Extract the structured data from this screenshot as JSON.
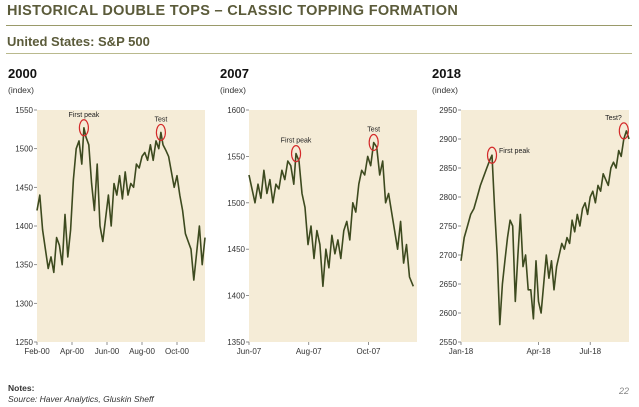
{
  "header": {
    "title": "HISTORICAL DOUBLE TOPS – CLASSIC TOPPING FORMATION",
    "subtitle": "United States: S&P 500"
  },
  "footer": {
    "notes_label": "Notes:",
    "source": "Source: Haver Analytics, Gluskin Sheff",
    "page_number": "22"
  },
  "colors": {
    "plot_background": "#f5ecd7",
    "line": "#3d4a1f",
    "circle": "#d42a2a"
  },
  "chart_data": [
    {
      "type": "line",
      "title": "2000",
      "ylabel": "(index)",
      "ylim": [
        1250,
        1550
      ],
      "yticks": [
        1250,
        1300,
        1350,
        1400,
        1450,
        1500,
        1550
      ],
      "xticks": [
        "Feb-00",
        "Apr-00",
        "Jun-00",
        "Aug-00",
        "Oct-00"
      ],
      "xrange": [
        0,
        24
      ],
      "xtick_positions": [
        0,
        5,
        10,
        15,
        20
      ],
      "grid": false,
      "annotations": [
        {
          "label": "First peak",
          "x": 6.7,
          "y": 1527
        },
        {
          "label": "Test",
          "x": 17.7,
          "y": 1521
        }
      ],
      "series": [
        {
          "x": [
            0,
            0.4,
            0.8,
            1.2,
            1.6,
            2,
            2.4,
            2.8,
            3.2,
            3.6,
            4,
            4.4,
            4.8,
            5.2,
            5.6,
            6,
            6.4,
            6.7,
            7,
            7.4,
            7.8,
            8.2,
            8.6,
            9,
            9.4,
            9.8,
            10.2,
            10.6,
            11,
            11.4,
            11.8,
            12.2,
            12.6,
            13,
            13.4,
            13.8,
            14.2,
            14.6,
            15,
            15.4,
            15.8,
            16.2,
            16.6,
            17,
            17.4,
            17.7,
            18,
            18.4,
            18.8,
            19.2,
            19.6,
            20,
            20.4,
            20.8,
            21.2,
            21.6,
            22,
            22.4,
            22.8,
            23.2,
            23.6,
            24
          ],
          "values": [
            1420,
            1440,
            1395,
            1370,
            1345,
            1360,
            1340,
            1385,
            1375,
            1350,
            1415,
            1360,
            1395,
            1460,
            1500,
            1510,
            1480,
            1527,
            1515,
            1505,
            1455,
            1420,
            1480,
            1400,
            1380,
            1410,
            1440,
            1400,
            1455,
            1440,
            1465,
            1435,
            1470,
            1440,
            1455,
            1450,
            1480,
            1475,
            1490,
            1495,
            1485,
            1505,
            1485,
            1510,
            1500,
            1521,
            1505,
            1498,
            1490,
            1470,
            1450,
            1465,
            1440,
            1420,
            1390,
            1380,
            1370,
            1330,
            1365,
            1400,
            1350,
            1385
          ]
        }
      ]
    },
    {
      "type": "line",
      "title": "2007",
      "ylabel": "(index)",
      "ylim": [
        1350,
        1600
      ],
      "yticks": [
        1350,
        1400,
        1450,
        1500,
        1550,
        1600
      ],
      "xticks": [
        "Jun-07",
        "Aug-07",
        "Oct-07"
      ],
      "xrange": [
        0,
        22.5
      ],
      "xtick_positions": [
        0,
        8,
        16
      ],
      "grid": false,
      "annotations": [
        {
          "label": "First peak",
          "x": 6.3,
          "y": 1553
        },
        {
          "label": "Test",
          "x": 16.7,
          "y": 1565
        }
      ],
      "series": [
        {
          "x": [
            0,
            0.4,
            0.8,
            1.2,
            1.6,
            2,
            2.4,
            2.8,
            3.2,
            3.6,
            4,
            4.4,
            4.8,
            5.2,
            5.6,
            6,
            6.3,
            6.7,
            7.1,
            7.5,
            7.9,
            8.3,
            8.7,
            9.1,
            9.5,
            9.9,
            10.3,
            10.7,
            11.1,
            11.5,
            11.9,
            12.3,
            12.7,
            13.1,
            13.5,
            13.9,
            14.3,
            14.7,
            15.1,
            15.5,
            15.9,
            16.3,
            16.7,
            17.1,
            17.5,
            17.9,
            18.3,
            18.7,
            19.1,
            19.5,
            19.9,
            20.3,
            20.7,
            21.1,
            21.5,
            22
          ],
          "values": [
            1530,
            1515,
            1500,
            1520,
            1505,
            1535,
            1510,
            1525,
            1500,
            1520,
            1515,
            1535,
            1525,
            1545,
            1540,
            1520,
            1553,
            1545,
            1510,
            1495,
            1455,
            1475,
            1440,
            1470,
            1455,
            1410,
            1450,
            1430,
            1465,
            1445,
            1460,
            1440,
            1470,
            1480,
            1460,
            1500,
            1490,
            1520,
            1535,
            1530,
            1550,
            1540,
            1565,
            1560,
            1530,
            1545,
            1500,
            1510,
            1490,
            1470,
            1450,
            1480,
            1435,
            1455,
            1420,
            1410
          ]
        }
      ]
    },
    {
      "type": "line",
      "title": "2018",
      "ylabel": "(index)",
      "ylim": [
        2550,
        2950
      ],
      "yticks": [
        2550,
        2600,
        2650,
        2700,
        2750,
        2800,
        2850,
        2900,
        2950
      ],
      "xticks": [
        "Jan-18",
        "Apr-18",
        "Jul-18"
      ],
      "xrange": [
        0,
        26
      ],
      "xtick_positions": [
        0,
        12,
        20
      ],
      "grid": false,
      "annotations": [
        {
          "label": "First peak",
          "x": 4.8,
          "y": 2872
        },
        {
          "label": "Test?",
          "x": 25.2,
          "y": 2914
        }
      ],
      "series": [
        {
          "x": [
            0,
            0.5,
            1,
            1.5,
            2,
            2.5,
            3,
            3.5,
            4,
            4.5,
            4.8,
            5.2,
            5.6,
            6,
            6.4,
            6.8,
            7.2,
            7.6,
            8,
            8.4,
            8.8,
            9.2,
            9.6,
            10,
            10.4,
            10.8,
            11.2,
            11.6,
            12,
            12.4,
            12.8,
            13.2,
            13.6,
            14,
            14.4,
            14.8,
            15.2,
            15.6,
            16,
            16.4,
            16.8,
            17.2,
            17.6,
            18,
            18.4,
            18.8,
            19.2,
            19.6,
            20,
            20.4,
            20.8,
            21.2,
            21.6,
            22,
            22.4,
            22.8,
            23.2,
            23.6,
            24,
            24.4,
            24.8,
            25.2,
            25.6,
            26
          ],
          "values": [
            2690,
            2730,
            2750,
            2770,
            2780,
            2800,
            2820,
            2835,
            2850,
            2865,
            2872,
            2780,
            2700,
            2580,
            2650,
            2690,
            2730,
            2760,
            2750,
            2620,
            2700,
            2770,
            2680,
            2700,
            2640,
            2640,
            2590,
            2690,
            2620,
            2600,
            2650,
            2700,
            2660,
            2690,
            2640,
            2680,
            2700,
            2720,
            2710,
            2730,
            2720,
            2760,
            2740,
            2770,
            2750,
            2780,
            2790,
            2770,
            2800,
            2810,
            2790,
            2820,
            2810,
            2840,
            2830,
            2820,
            2850,
            2860,
            2850,
            2880,
            2870,
            2900,
            2914,
            2900
          ]
        }
      ]
    }
  ]
}
